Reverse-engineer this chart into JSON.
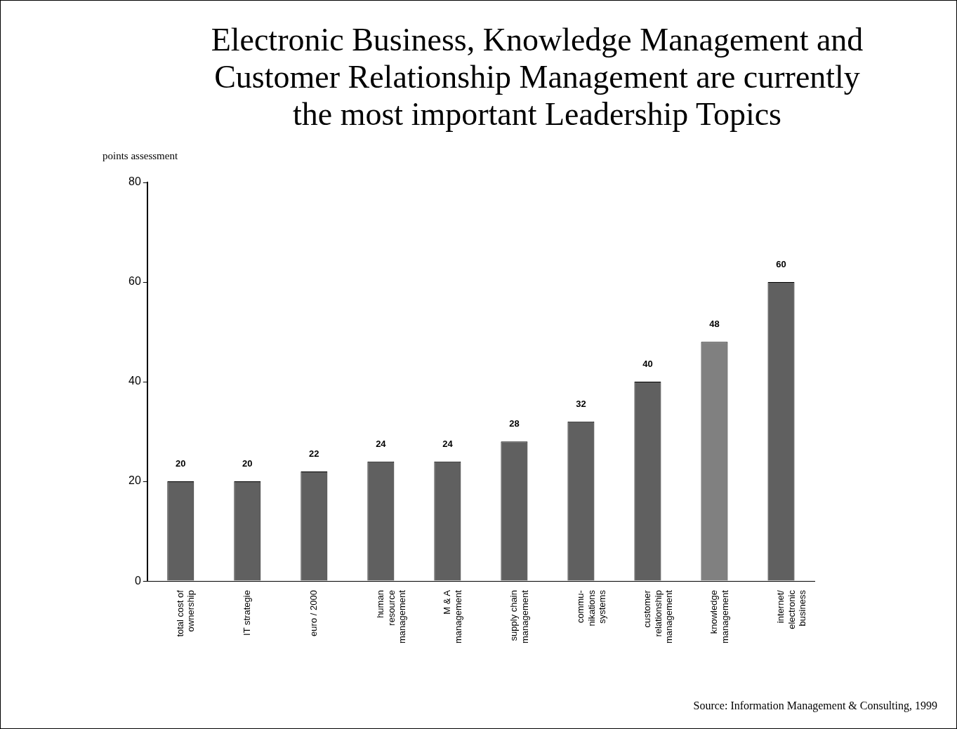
{
  "chart_data": {
    "type": "bar",
    "title": "Electronic Business, Knowledge Management and\nCustomer Relationship Management are currently\nthe most important Leadership Topics",
    "ylabel": "points assessment",
    "categories": [
      "total cost of\nownership",
      "IT strategie",
      "euro / 2000",
      "human\nresource\nmanagement",
      "M & A\nmanagement",
      "supply chain\nmanagement",
      "commu-\nnikations\nsystems",
      "customer\nrelationship\nmanagement",
      "knowledge\nmanagement",
      "internet/\nelectronic\nbusiness"
    ],
    "values": [
      20,
      20,
      22,
      24,
      24,
      28,
      32,
      40,
      48,
      60
    ],
    "colors": [
      "#606060",
      "#606060",
      "#606060",
      "#606060",
      "#606060",
      "#606060",
      "#606060",
      "#606060",
      "#808080",
      "#606060"
    ],
    "ylim": [
      0,
      80
    ],
    "yticks": [
      0,
      20,
      40,
      60,
      80
    ],
    "grid": false,
    "legend": false,
    "data_labels": true,
    "annotations": [
      "Source: Information Management & Consulting, 1999"
    ]
  }
}
